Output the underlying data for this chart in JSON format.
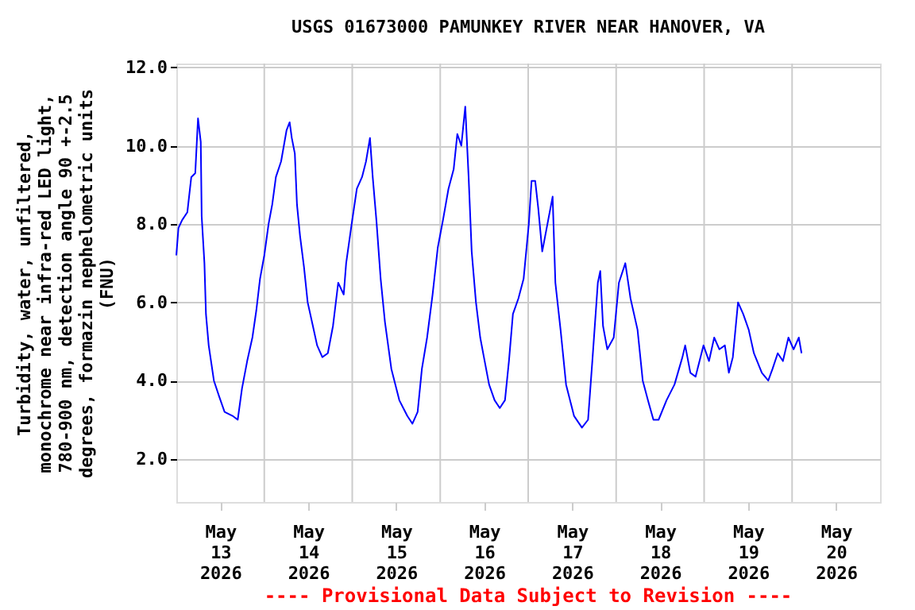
{
  "chart_data": {
    "type": "line",
    "title": "USGS 01673000 PAMUNKEY RIVER NEAR HANOVER, VA",
    "ylabel": "Turbidity, water, unfiltered,\nmonochrome near infra-red LED light,\n780-900 nm, detection angle 90 +-2.5\ndegrees, formazin nephelometric units\n(FNU)",
    "annotations": [
      "---- Provisional Data Subject to Revision ----"
    ],
    "x": [
      "2026-05-13T00:00",
      "2026-05-13T00:35",
      "2026-05-13T01:35",
      "2026-05-13T03:00",
      "2026-05-13T04:05",
      "2026-05-13T05:10",
      "2026-05-13T05:55",
      "2026-05-13T06:40",
      "2026-05-13T06:55",
      "2026-05-13T07:40",
      "2026-05-13T08:05",
      "2026-05-13T08:50",
      "2026-05-13T10:15",
      "2026-05-13T11:40",
      "2026-05-13T13:10",
      "2026-05-13T15:20",
      "2026-05-13T16:45",
      "2026-05-13T17:55",
      "2026-05-13T19:20",
      "2026-05-13T20:45",
      "2026-05-13T21:50",
      "2026-05-13T22:50",
      "2026-05-14T00:00",
      "2026-05-14T01:10",
      "2026-05-14T02:10",
      "2026-05-14T03:10",
      "2026-05-14T04:35",
      "2026-05-14T06:05",
      "2026-05-14T06:55",
      "2026-05-14T07:30",
      "2026-05-14T08:20",
      "2026-05-14T08:55",
      "2026-05-14T09:45",
      "2026-05-14T10:50",
      "2026-05-14T11:50",
      "2026-05-14T13:15",
      "2026-05-14T14:25",
      "2026-05-14T15:50",
      "2026-05-14T17:20",
      "2026-05-14T18:45",
      "2026-05-14T20:10",
      "2026-05-14T21:40",
      "2026-05-14T22:20",
      "2026-05-14T23:50",
      "2026-05-15T01:15",
      "2026-05-15T02:40",
      "2026-05-15T03:45",
      "2026-05-15T04:50",
      "2026-05-15T05:35",
      "2026-05-15T06:35",
      "2026-05-15T07:45",
      "2026-05-15T08:55",
      "2026-05-15T10:40",
      "2026-05-15T12:50",
      "2026-05-15T15:00",
      "2026-05-15T16:25",
      "2026-05-15T17:50",
      "2026-05-15T19:00",
      "2026-05-15T20:25",
      "2026-05-15T21:55",
      "2026-05-15T23:20",
      "2026-05-16T00:45",
      "2026-05-16T02:15",
      "2026-05-16T03:40",
      "2026-05-16T04:40",
      "2026-05-16T05:45",
      "2026-05-16T06:50",
      "2026-05-16T07:45",
      "2026-05-16T08:35",
      "2026-05-16T09:45",
      "2026-05-16T10:55",
      "2026-05-16T11:55",
      "2026-05-16T13:20",
      "2026-05-16T14:50",
      "2026-05-16T16:15",
      "2026-05-16T17:40",
      "2026-05-16T18:45",
      "2026-05-16T19:50",
      "2026-05-16T21:20",
      "2026-05-16T22:45",
      "2026-05-17T00:10",
      "2026-05-17T00:55",
      "2026-05-17T01:55",
      "2026-05-17T02:45",
      "2026-05-17T03:50",
      "2026-05-17T05:15",
      "2026-05-17T06:40",
      "2026-05-17T07:25",
      "2026-05-17T08:50",
      "2026-05-17T10:20",
      "2026-05-17T12:30",
      "2026-05-17T14:40",
      "2026-05-17T16:20",
      "2026-05-17T17:30",
      "2026-05-17T19:00",
      "2026-05-17T19:40",
      "2026-05-17T20:25",
      "2026-05-17T21:35",
      "2026-05-17T23:20",
      "2026-05-18T00:45",
      "2026-05-18T02:30",
      "2026-05-18T03:55",
      "2026-05-18T05:50",
      "2026-05-18T07:15",
      "2026-05-18T08:40",
      "2026-05-18T10:10",
      "2026-05-18T11:35",
      "2026-05-18T13:45",
      "2026-05-18T15:55",
      "2026-05-18T18:05",
      "2026-05-18T18:50",
      "2026-05-18T20:15",
      "2026-05-18T21:40",
      "2026-05-18T23:50",
      "2026-05-19T01:20",
      "2026-05-19T02:45",
      "2026-05-19T04:10",
      "2026-05-19T05:40",
      "2026-05-19T06:45",
      "2026-05-19T07:50",
      "2026-05-19T09:15",
      "2026-05-19T10:40",
      "2026-05-19T12:10",
      "2026-05-19T13:35",
      "2026-05-19T15:45",
      "2026-05-19T17:30",
      "2026-05-19T18:40",
      "2026-05-19T20:05",
      "2026-05-19T21:30",
      "2026-05-19T23:00",
      "2026-05-20T00:25",
      "2026-05-20T01:50",
      "2026-05-20T02:35"
    ],
    "series": [
      {
        "color": "#0000ff",
        "values": [
          7.2,
          7.9,
          8.1,
          8.3,
          9.2,
          9.3,
          10.7,
          10.1,
          8.2,
          7.0,
          5.7,
          4.9,
          4.0,
          3.6,
          3.2,
          3.1,
          3.0,
          3.8,
          4.5,
          5.1,
          5.8,
          6.6,
          7.2,
          8.0,
          8.5,
          9.2,
          9.6,
          10.4,
          10.6,
          10.2,
          9.8,
          8.5,
          7.7,
          6.9,
          6.0,
          5.4,
          4.9,
          4.6,
          4.7,
          5.4,
          6.5,
          6.2,
          7.0,
          8.0,
          8.9,
          9.2,
          9.6,
          10.2,
          9.2,
          8.1,
          6.6,
          5.5,
          4.3,
          3.5,
          3.1,
          2.9,
          3.2,
          4.3,
          5.1,
          6.2,
          7.4,
          8.1,
          8.9,
          9.4,
          10.3,
          10.0,
          11.0,
          9.2,
          7.3,
          6.0,
          5.1,
          4.6,
          3.9,
          3.5,
          3.3,
          3.5,
          4.5,
          5.7,
          6.1,
          6.6,
          8.0,
          9.1,
          9.1,
          8.4,
          7.3,
          8.0,
          8.7,
          6.5,
          5.3,
          3.9,
          3.1,
          2.8,
          3.0,
          4.5,
          6.5,
          6.8,
          5.4,
          4.8,
          5.1,
          6.5,
          7.0,
          6.1,
          5.3,
          4.0,
          3.5,
          3.0,
          3.0,
          3.5,
          3.9,
          4.6,
          4.9,
          4.2,
          4.1,
          4.9,
          4.5,
          5.1,
          4.8,
          4.9,
          4.2,
          4.6,
          6.0,
          5.7,
          5.3,
          4.7,
          4.2,
          4.0,
          4.3,
          4.7,
          4.5,
          5.1,
          4.8,
          5.1,
          4.7
        ]
      }
    ],
    "xlim": [
      "2026-05-13T00:00",
      "2026-05-21T00:00"
    ],
    "xticks": [
      {
        "value": "2026-05-13T12:00",
        "label": "May\n13\n2026"
      },
      {
        "value": "2026-05-14T00:00",
        "label": null
      },
      {
        "value": "2026-05-14T12:00",
        "label": "May\n14\n2026"
      },
      {
        "value": "2026-05-15T00:00",
        "label": null
      },
      {
        "value": "2026-05-15T12:00",
        "label": "May\n15\n2026"
      },
      {
        "value": "2026-05-16T00:00",
        "label": null
      },
      {
        "value": "2026-05-16T12:00",
        "label": "May\n16\n2026"
      },
      {
        "value": "2026-05-17T00:00",
        "label": null
      },
      {
        "value": "2026-05-17T12:00",
        "label": "May\n17\n2026"
      },
      {
        "value": "2026-05-18T00:00",
        "label": null
      },
      {
        "value": "2026-05-18T12:00",
        "label": "May\n18\n2026"
      },
      {
        "value": "2026-05-19T00:00",
        "label": null
      },
      {
        "value": "2026-05-19T12:00",
        "label": "May\n19\n2026"
      },
      {
        "value": "2026-05-20T00:00",
        "label": null
      },
      {
        "value": "2026-05-20T12:00",
        "label": "May\n20\n2026"
      }
    ],
    "ylim": [
      0.9,
      12.1
    ],
    "yticks": [
      {
        "value": 2,
        "label": "2.0"
      },
      {
        "value": 4,
        "label": "4.0"
      },
      {
        "value": 6,
        "label": "6.0"
      },
      {
        "value": 8,
        "label": "8.0"
      },
      {
        "value": 10,
        "label": "10.0"
      },
      {
        "value": 12,
        "label": "12.0"
      }
    ],
    "grid": true,
    "line_style": "solid",
    "marker": "none"
  }
}
